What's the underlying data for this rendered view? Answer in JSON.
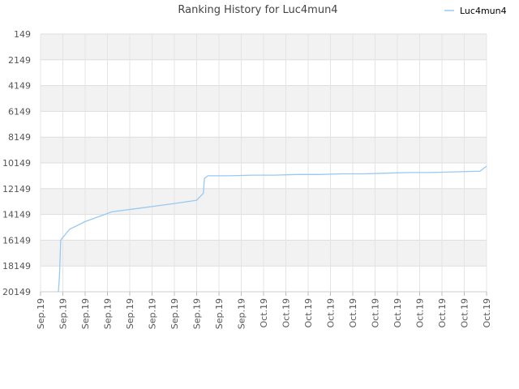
{
  "chart_data": {
    "type": "line",
    "title": "Ranking History for Luc4mun4",
    "xlabel": "",
    "ylabel": "",
    "y_inverted": true,
    "ylim": [
      149,
      20149
    ],
    "yticks": [
      149,
      2149,
      4149,
      6149,
      8149,
      10149,
      12149,
      14149,
      16149,
      18149,
      20149
    ],
    "xticks": [
      "Sep.19",
      "Sep.19",
      "Sep.19",
      "Sep.19",
      "Sep.19",
      "Sep.19",
      "Sep.19",
      "Sep.19",
      "Sep.19",
      "Sep.19",
      "Oct.19",
      "Oct.19",
      "Oct.19",
      "Oct.19",
      "Oct.19",
      "Oct.19",
      "Oct.19",
      "Oct.19",
      "Oct.19",
      "Oct.19",
      "Oct.19"
    ],
    "grid": true,
    "legend_position": "top-right",
    "series": [
      {
        "name": "Luc4mun4",
        "color": "#99c9f0",
        "points": [
          [
            0.8,
            20149
          ],
          [
            0.85,
            18900
          ],
          [
            0.9,
            16149
          ],
          [
            1.3,
            15300
          ],
          [
            2.0,
            14700
          ],
          [
            3.2,
            13950
          ],
          [
            4.5,
            13650
          ],
          [
            6.0,
            13300
          ],
          [
            7.0,
            13050
          ],
          [
            7.3,
            12500
          ],
          [
            7.35,
            11350
          ],
          [
            7.5,
            11150
          ],
          [
            8.5,
            11150
          ],
          [
            9.5,
            11100
          ],
          [
            10.5,
            11100
          ],
          [
            11.5,
            11050
          ],
          [
            12.5,
            11050
          ],
          [
            13.5,
            11000
          ],
          [
            14.5,
            11000
          ],
          [
            15.5,
            10950
          ],
          [
            16.5,
            10900
          ],
          [
            17.5,
            10900
          ],
          [
            18.5,
            10850
          ],
          [
            19.5,
            10800
          ],
          [
            19.7,
            10800
          ],
          [
            20.0,
            10400
          ]
        ]
      }
    ]
  }
}
